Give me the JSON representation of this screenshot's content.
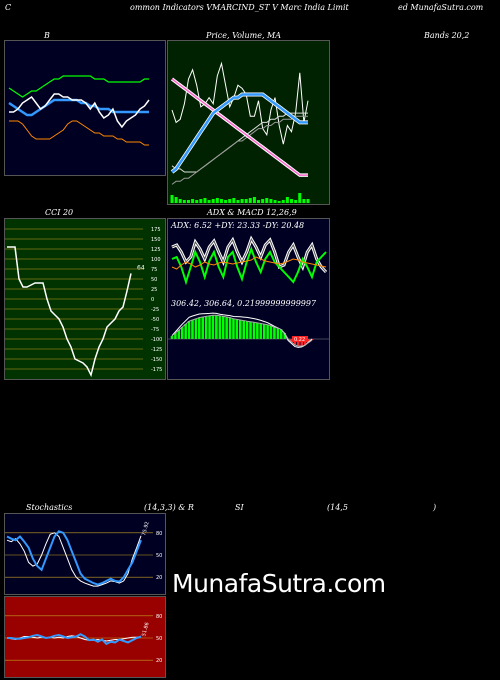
{
  "header": {
    "left": "ommon Indicators VMARCIND_ST V Marc India Limit",
    "right": "ed MunafaSutra.com",
    "c_letter": "C"
  },
  "labels": {
    "b": "B",
    "price": "Price, Volume, MA",
    "bands": "Bands 20,2",
    "cci": "CCI 20",
    "adx_macd": "ADX & MACD 12,26,9",
    "adx_values": "ADX: 6.52 +DY: 23.33 -DY: 20.48",
    "macd_values": "306.42, 306.64, 0.21999999999997",
    "macd_badge": "0.22",
    "stoch": "Stochastics",
    "stoch_params": "(14,3,3) & R",
    "si": "SI",
    "rsi_params": "(14,5",
    "rsi_close": ")",
    "stoch_value": "75.92",
    "rsi_value": "51.86",
    "cci_value": "64",
    "brand": "MunafaSutra.com"
  },
  "colors": {
    "bollinger_bg": "#000022",
    "price_bg": "#002200",
    "cci_bg": "#003300",
    "macd_bg": "#000022",
    "stoch_bg": "#000022",
    "rsi_bg": "#990000",
    "green": "#00ff00",
    "blue": "#3399ff",
    "orange": "#ff8800"
  },
  "chart_data": [
    {
      "type": "line",
      "series": [
        {
          "values": [
            29,
            28,
            27,
            26,
            27,
            28,
            28,
            29,
            30,
            31,
            32,
            32,
            33,
            33,
            33,
            33,
            33,
            33,
            33,
            32,
            32,
            32,
            31,
            31,
            31,
            31,
            31,
            31,
            31,
            31,
            32,
            32
          ]
        },
        {
          "values": [
            24,
            23,
            22,
            21,
            20,
            20,
            21,
            22,
            23,
            24,
            25,
            25,
            25,
            25,
            25,
            25,
            24,
            24,
            23,
            23,
            22,
            22,
            22,
            21,
            21,
            21,
            21,
            21,
            21,
            21,
            21,
            21
          ]
        },
        {
          "values": [
            18,
            18,
            18,
            17,
            15,
            13,
            12,
            12,
            12,
            12,
            13,
            14,
            15,
            17,
            18,
            18,
            17,
            16,
            15,
            14,
            14,
            13,
            13,
            13,
            12,
            12,
            11,
            11,
            11,
            11,
            10,
            10
          ]
        },
        {
          "values": [
            21,
            21,
            22,
            24,
            25,
            26,
            24,
            22,
            23,
            25,
            27,
            27,
            26,
            26,
            25,
            25,
            25,
            24,
            22,
            24,
            21,
            19,
            20,
            22,
            18,
            16,
            18,
            19,
            20,
            22,
            23,
            25
          ]
        }
      ]
    },
    {
      "type": "line",
      "series": [
        {
          "values": [
            8,
            6,
            4,
            3,
            3,
            4,
            3,
            4,
            5,
            3,
            4,
            5,
            4,
            3,
            4,
            5,
            3,
            4,
            4,
            5,
            6,
            3,
            4,
            5,
            4,
            3,
            2,
            3,
            6,
            4,
            3,
            10,
            4,
            4
          ]
        },
        {
          "values": [
            30,
            26,
            27,
            32,
            40,
            43,
            38,
            31,
            32,
            34,
            32,
            41,
            45,
            38,
            31,
            34,
            38,
            37,
            35,
            28,
            28,
            33,
            24,
            22,
            30,
            34,
            25,
            19,
            25,
            23,
            29,
            42,
            26,
            33
          ]
        },
        {
          "values": [
            10,
            11,
            13,
            15,
            17,
            19,
            21,
            23,
            25,
            27,
            29,
            30,
            31,
            32,
            33,
            34,
            34,
            35,
            35,
            35,
            35,
            35,
            35,
            34,
            33,
            32,
            31,
            30,
            29,
            28,
            27,
            26,
            26,
            26
          ]
        },
        {
          "values": [
            40,
            39,
            38,
            37,
            36,
            35,
            34,
            33,
            32,
            31,
            30,
            29,
            28,
            27,
            26,
            25,
            24,
            23,
            22,
            21,
            20,
            19,
            18,
            17,
            16,
            15,
            14,
            13,
            12,
            11,
            10,
            9,
            9,
            9
          ]
        },
        {
          "values": [
            12,
            11,
            11,
            10,
            10,
            10,
            10,
            11,
            12,
            13,
            14,
            15,
            16,
            17,
            18,
            19,
            20,
            21,
            22,
            23,
            24,
            25,
            26,
            26,
            27,
            27,
            28,
            28,
            29,
            29,
            29,
            29,
            29,
            29
          ]
        },
        {
          "values": [
            6,
            7,
            7,
            8,
            8,
            9,
            10,
            11,
            12,
            13,
            14,
            15,
            16,
            17,
            18,
            19,
            20,
            20,
            21,
            22,
            23,
            24,
            24,
            25,
            25,
            26,
            26,
            27,
            27,
            27,
            28,
            28,
            28,
            28
          ]
        }
      ]
    },
    {
      "type": "line",
      "ylim": [
        -175,
        175
      ],
      "yticks": [
        175,
        150,
        125,
        100,
        75,
        50,
        25,
        0,
        -25,
        -50,
        -75,
        -100,
        -125,
        -150,
        -175
      ],
      "series": [
        {
          "values": [
            130,
            130,
            130,
            50,
            30,
            30,
            35,
            40,
            40,
            40,
            0,
            -30,
            -40,
            -50,
            -70,
            -100,
            -120,
            -150,
            -155,
            -160,
            -170,
            -190,
            -150,
            -120,
            -100,
            -70,
            -60,
            -50,
            -30,
            -20,
            20,
            64
          ]
        }
      ]
    },
    {
      "type": "line",
      "series": [
        {
          "values": [
            60,
            62,
            55,
            45,
            50,
            65,
            58,
            48,
            60,
            66,
            55,
            45,
            60,
            67,
            55,
            45,
            55,
            68,
            60,
            50,
            62,
            67,
            55,
            40,
            42,
            55,
            62,
            50,
            40,
            55,
            62,
            48,
            40,
            35
          ]
        },
        {
          "values": [
            48,
            50,
            40,
            25,
            40,
            55,
            45,
            30,
            46,
            55,
            40,
            30,
            50,
            55,
            40,
            28,
            45,
            58,
            45,
            35,
            48,
            55,
            45,
            40,
            35,
            30,
            25,
            35,
            48,
            40,
            30,
            45,
            50,
            55
          ]
        },
        {
          "values": [
            40,
            38,
            42,
            45,
            43,
            40,
            42,
            45,
            43,
            42,
            44,
            45,
            44,
            43,
            44,
            45,
            46,
            47,
            50,
            48,
            46,
            45,
            44,
            43,
            44,
            46,
            48,
            47,
            45,
            44,
            43,
            42,
            41,
            40
          ]
        }
      ]
    },
    {
      "type": "bar",
      "series": [
        {
          "values": [
            0.05,
            0.1,
            0.15,
            0.2,
            0.25,
            0.3,
            0.32,
            0.34,
            0.36,
            0.37,
            0.38,
            0.39,
            0.4,
            0.4,
            0.39,
            0.38,
            0.37,
            0.36,
            0.34,
            0.33,
            0.32,
            0.31,
            0.3,
            0.29,
            0.28,
            0.27,
            0.26,
            0.25,
            0.24,
            0.22,
            0.2,
            0.18,
            0.16,
            0.1,
            0.0,
            -0.05,
            -0.1,
            -0.12,
            -0.12,
            -0.1,
            -0.06,
            -0.02
          ]
        }
      ]
    },
    {
      "type": "line",
      "ylim": [
        0,
        100
      ],
      "yticks": [
        80,
        50,
        20
      ],
      "series": [
        {
          "values": [
            70,
            68,
            72,
            65,
            55,
            40,
            35,
            38,
            50,
            65,
            78,
            80,
            75,
            60,
            45,
            30,
            20,
            15,
            12,
            10,
            8,
            8,
            10,
            12,
            15,
            14,
            12,
            15,
            25,
            45,
            60,
            75.92
          ]
        },
        {
          "values": [
            75,
            72,
            70,
            75,
            68,
            60,
            45,
            35,
            30,
            45,
            60,
            75,
            82,
            80,
            70,
            55,
            40,
            25,
            18,
            15,
            12,
            10,
            12,
            15,
            18,
            15,
            14,
            20,
            30,
            40,
            55,
            70
          ]
        }
      ]
    },
    {
      "type": "line",
      "ylim": [
        0,
        100
      ],
      "yticks": [
        80,
        50,
        20
      ],
      "series": [
        {
          "values": [
            50,
            49,
            48,
            50,
            52,
            52,
            51,
            50,
            51,
            50,
            51,
            50,
            51,
            50,
            52,
            53,
            52,
            50,
            48,
            47,
            47,
            48,
            47,
            46,
            47,
            48,
            48,
            49,
            50,
            51,
            51,
            51.86
          ]
        },
        {
          "values": [
            50,
            50,
            49,
            49,
            50,
            51,
            53,
            54,
            52,
            50,
            51,
            53,
            54,
            52,
            50,
            51,
            52,
            55,
            52,
            47,
            48,
            45,
            48,
            42,
            45,
            44,
            48,
            46,
            44,
            47,
            50,
            52
          ]
        }
      ]
    }
  ]
}
